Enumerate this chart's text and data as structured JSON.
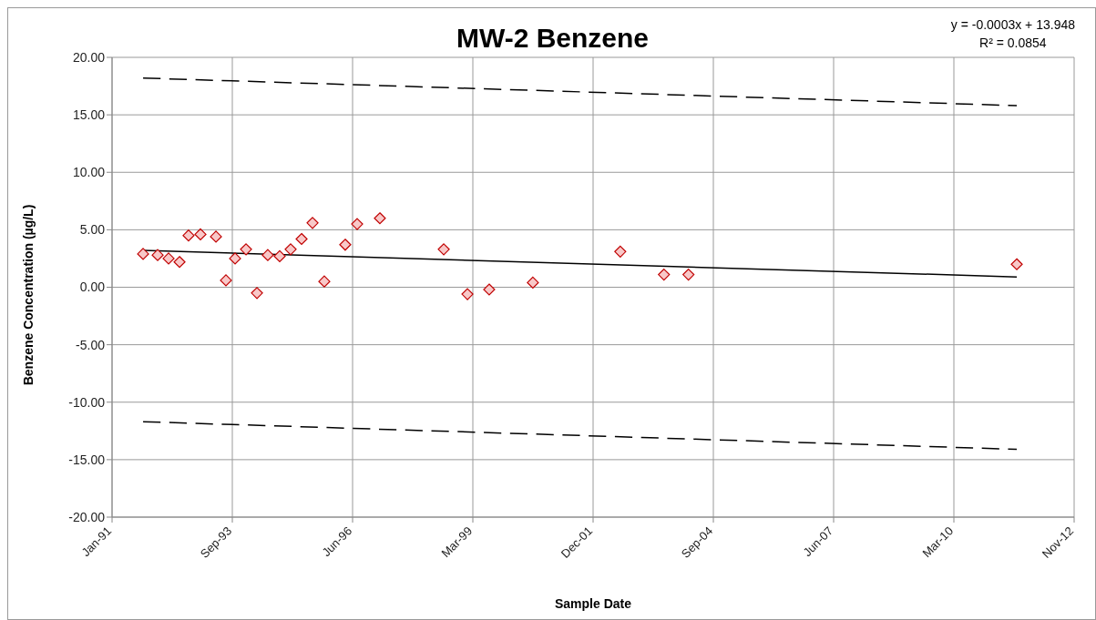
{
  "chart_data": {
    "type": "scatter",
    "title": "MW-2 Benzene",
    "xlabel": "Sample Date",
    "ylabel": "Benzene Concentration (µg/L)",
    "annotations": [
      "y = -0.0003x + 13.948",
      "R² = 0.0854"
    ],
    "xlim": [
      "1991-01-01",
      "2012-11-26"
    ],
    "xticks": [
      {
        "value": "1991-01-01",
        "label": "Jan-91"
      },
      {
        "value": "1993-09-27",
        "label": "Sep-93"
      },
      {
        "value": "1996-06-23",
        "label": "Jun-96"
      },
      {
        "value": "1999-03-20",
        "label": "Mar-99"
      },
      {
        "value": "2001-12-14",
        "label": "Dec-01"
      },
      {
        "value": "2004-09-09",
        "label": "Sep-04"
      },
      {
        "value": "2007-06-06",
        "label": "Jun-07"
      },
      {
        "value": "2010-03-02",
        "label": "Mar-10"
      },
      {
        "value": "2012-11-26",
        "label": "Nov-12"
      }
    ],
    "ylim": [
      -20,
      20
    ],
    "yticks": [
      {
        "value": -20,
        "label": "-20.00"
      },
      {
        "value": -15,
        "label": "-15.00"
      },
      {
        "value": -10,
        "label": "-10.00"
      },
      {
        "value": -5,
        "label": "-5.00"
      },
      {
        "value": 0,
        "label": "0.00"
      },
      {
        "value": 5,
        "label": "5.00"
      },
      {
        "value": 10,
        "label": "10.00"
      },
      {
        "value": 15,
        "label": "15.00"
      },
      {
        "value": 20,
        "label": "20.00"
      }
    ],
    "grid": true,
    "legend": false,
    "series": [
      {
        "type": "scatter",
        "marker": "diamond",
        "color": "#c00000",
        "x": [
          "1991-09-16",
          "1992-01-15",
          "1992-04-15",
          "1992-07-15",
          "1992-09-28",
          "1993-01-05",
          "1993-05-14",
          "1993-08-05",
          "1993-10-20",
          "1994-01-19",
          "1994-04-20",
          "1994-07-19",
          "1994-10-26",
          "1995-01-25",
          "1995-04-26",
          "1995-07-26",
          "1995-11-01",
          "1996-04-23",
          "1996-07-31",
          "1997-02-05",
          "1998-07-21",
          "1999-02-03",
          "1999-08-03",
          "2000-07-31",
          "2002-07-28",
          "2003-07-26",
          "2004-02-15",
          "2011-08-07"
        ],
        "values": [
          2.9,
          2.8,
          2.5,
          2.2,
          4.5,
          4.6,
          4.4,
          0.6,
          2.5,
          3.3,
          -0.5,
          2.8,
          2.7,
          3.3,
          4.2,
          5.6,
          0.5,
          3.7,
          5.5,
          6.0,
          3.3,
          -0.6,
          -0.2,
          0.4,
          3.1,
          1.1,
          1.1,
          2.0
        ]
      },
      {
        "type": "line",
        "color": "#000000",
        "line_style": "solid",
        "x": [
          "1991-09-16",
          "2011-08-07"
        ],
        "values": [
          3.2,
          0.9
        ]
      },
      {
        "type": "line",
        "color": "#000000",
        "line_style": "dashed",
        "x": [
          "1991-09-16",
          "2011-08-07"
        ],
        "values": [
          18.2,
          15.8
        ]
      },
      {
        "type": "line",
        "color": "#000000",
        "line_style": "dashed",
        "x": [
          "1991-09-16",
          "2011-08-07"
        ],
        "values": [
          -11.7,
          -14.1
        ]
      }
    ]
  }
}
